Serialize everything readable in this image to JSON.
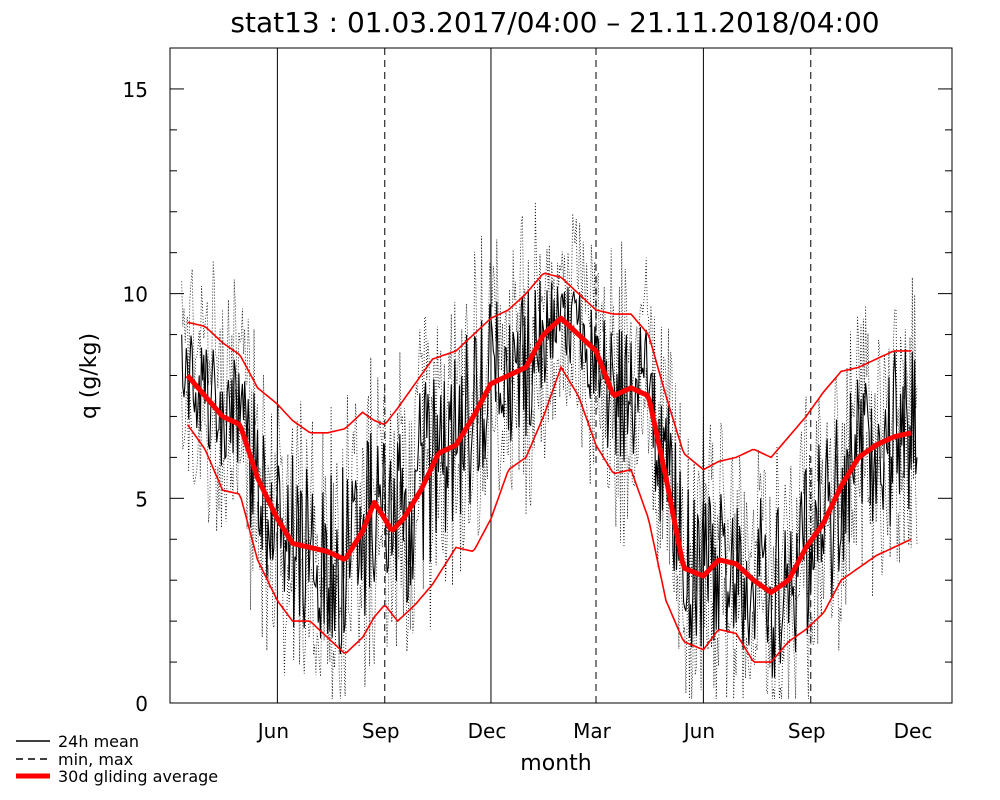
{
  "chart_data": {
    "type": "line",
    "title": "stat13 : 01.03.2017/04:00 – 21.11.2018/04:00",
    "xlabel": "month",
    "ylabel": "q (g/kg)",
    "ylim": [
      0,
      16
    ],
    "xlim": [
      0,
      670
    ],
    "yticks": [
      0,
      5,
      10,
      15
    ],
    "xticks": [
      {
        "label": "Jun",
        "day": 92
      },
      {
        "label": "Sep",
        "day": 184
      },
      {
        "label": "Dec",
        "day": 275
      },
      {
        "label": "Mar",
        "day": 365
      },
      {
        "label": "Jun",
        "day": 457
      },
      {
        "label": "Sep",
        "day": 549
      },
      {
        "label": "Dec",
        "day": 640
      }
    ],
    "year_boundaries": [
      92,
      275,
      457
    ],
    "quarter_boundaries": [
      0,
      184,
      365,
      549
    ],
    "legend": [
      "24h mean",
      "min, max",
      "30d gliding average"
    ],
    "legend_position": "bottom-left",
    "series": [
      {
        "name": "30d gliding average",
        "color": "#ff0000",
        "x": [
          15,
          30,
          45,
          60,
          75,
          92,
          105,
          120,
          135,
          150,
          165,
          175,
          184,
          190,
          200,
          215,
          230,
          245,
          260,
          275,
          290,
          305,
          320,
          335,
          350,
          365,
          380,
          395,
          410,
          425,
          440,
          457,
          470,
          485,
          500,
          515,
          530,
          545,
          560,
          575,
          590,
          605,
          620,
          635
        ],
        "y": [
          8.0,
          7.5,
          7.0,
          6.8,
          5.5,
          4.5,
          3.9,
          3.8,
          3.7,
          3.5,
          4.2,
          4.9,
          4.5,
          4.2,
          4.5,
          5.2,
          6.1,
          6.3,
          7.0,
          7.8,
          8.0,
          8.2,
          9.0,
          9.4,
          9.0,
          8.6,
          7.5,
          7.7,
          7.5,
          5.5,
          3.3,
          3.1,
          3.5,
          3.4,
          3.0,
          2.7,
          3.0,
          3.8,
          4.4,
          5.3,
          6.0,
          6.3,
          6.5,
          6.6
        ]
      },
      {
        "name": "upper envelope",
        "color": "#ff0000",
        "x": [
          15,
          30,
          45,
          60,
          75,
          92,
          105,
          120,
          135,
          150,
          165,
          175,
          184,
          195,
          210,
          225,
          245,
          260,
          275,
          290,
          305,
          320,
          335,
          350,
          365,
          380,
          395,
          410,
          425,
          440,
          457,
          470,
          485,
          500,
          515,
          530,
          545,
          560,
          575,
          590,
          605,
          620,
          635
        ],
        "y": [
          9.3,
          9.2,
          8.8,
          8.5,
          7.7,
          7.3,
          6.9,
          6.6,
          6.6,
          6.7,
          7.1,
          6.9,
          6.8,
          7.2,
          7.8,
          8.4,
          8.6,
          9.0,
          9.4,
          9.6,
          10.0,
          10.5,
          10.4,
          10.0,
          9.6,
          9.5,
          9.5,
          9.0,
          7.5,
          6.1,
          5.7,
          5.9,
          6.0,
          6.2,
          6.0,
          6.5,
          7.0,
          7.6,
          8.1,
          8.2,
          8.4,
          8.6,
          8.6
        ]
      },
      {
        "name": "lower envelope",
        "color": "#ff0000",
        "x": [
          15,
          30,
          45,
          60,
          75,
          92,
          105,
          120,
          135,
          150,
          165,
          175,
          184,
          195,
          210,
          225,
          245,
          260,
          275,
          290,
          305,
          320,
          335,
          350,
          365,
          380,
          395,
          410,
          425,
          440,
          457,
          470,
          485,
          500,
          515,
          530,
          545,
          560,
          575,
          590,
          605,
          620,
          635
        ],
        "y": [
          6.8,
          6.2,
          5.2,
          5.1,
          3.5,
          2.5,
          2.0,
          2.0,
          1.6,
          1.2,
          1.6,
          2.1,
          2.4,
          2.0,
          2.4,
          2.9,
          3.8,
          3.7,
          4.5,
          5.7,
          6.0,
          7.0,
          8.2,
          7.5,
          6.3,
          5.6,
          5.7,
          4.5,
          2.5,
          1.5,
          1.3,
          1.8,
          1.7,
          1.0,
          1.0,
          1.5,
          1.8,
          2.2,
          3.0,
          3.3,
          3.6,
          3.8,
          4.0
        ]
      }
    ]
  }
}
